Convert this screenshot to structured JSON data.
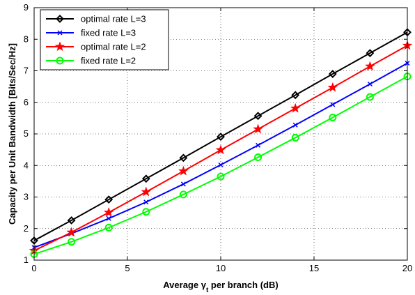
{
  "chart_data": {
    "type": "line",
    "xlabel_parts": {
      "before": "Average ",
      "symbol": "γ",
      "subscript": "t",
      "after": " per branch (dB)"
    },
    "ylabel": "Capacity per Unit Bandwidth [Bits/Sec/Hz]",
    "xlim": [
      0,
      20
    ],
    "ylim": [
      1,
      9
    ],
    "xticks": [
      0,
      5,
      10,
      15,
      20
    ],
    "yticks": [
      1,
      2,
      3,
      4,
      5,
      6,
      7,
      8,
      9
    ],
    "grid": true,
    "grid_style": "dotted",
    "legend_position": "top-left",
    "x": [
      0,
      2,
      4,
      6,
      8,
      10,
      12,
      14,
      16,
      18,
      20
    ],
    "series": [
      {
        "name": "optimal rate L=3",
        "color": "#000000",
        "marker": "diamond",
        "values": [
          1.62,
          2.26,
          2.92,
          3.58,
          4.24,
          4.91,
          5.57,
          6.23,
          6.9,
          7.56,
          8.22
        ]
      },
      {
        "name": "fixed rate L=3",
        "color": "#0000ff",
        "marker": "x",
        "values": [
          1.4,
          1.84,
          2.32,
          2.84,
          3.41,
          4.02,
          4.64,
          5.28,
          5.93,
          6.58,
          7.24
        ]
      },
      {
        "name": "optimal rate L=2",
        "color": "#ff0000",
        "marker": "star",
        "values": [
          1.3,
          1.88,
          2.51,
          3.16,
          3.82,
          4.49,
          5.15,
          5.81,
          6.47,
          7.14,
          7.8
        ]
      },
      {
        "name": "fixed rate L=2",
        "color": "#00ff00",
        "marker": "circle",
        "values": [
          1.19,
          1.58,
          2.03,
          2.53,
          3.08,
          3.65,
          4.26,
          4.88,
          5.52,
          6.17,
          6.82
        ]
      }
    ]
  }
}
